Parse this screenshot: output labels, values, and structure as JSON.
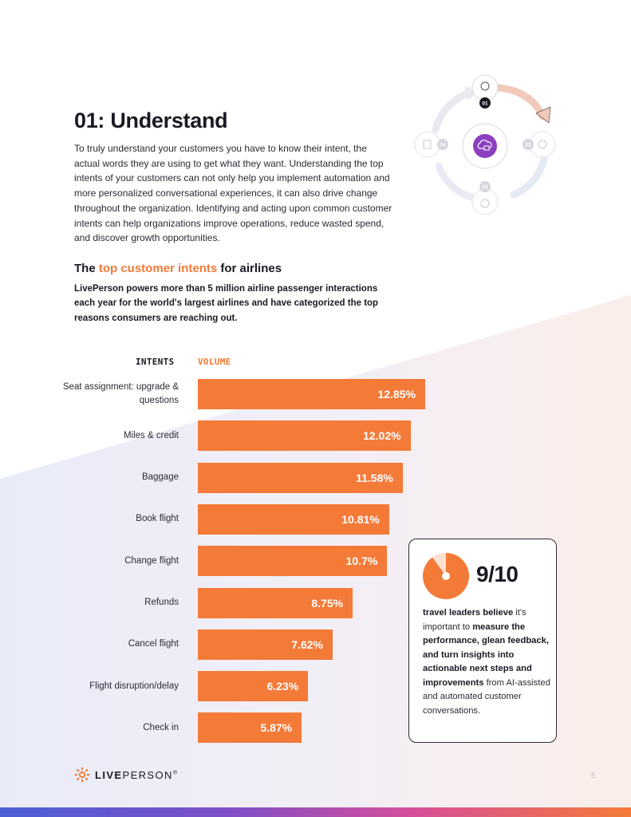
{
  "section": {
    "title": "01: Understand",
    "intro": "To truly understand your customers you have to know their intent, the actual words they are using to get what they want. Understanding the top intents of your customers can not only help you implement automation and more personalized conversational experiences, it can also drive change throughout the organization. Identifying and acting upon common customer intents can help organizations improve operations, reduce wasted spend, and discover growth opportunities."
  },
  "cycle_diagram": {
    "steps": [
      "01",
      "02",
      "03",
      "04"
    ],
    "active_step": "01",
    "icons": [
      "lightbulb-icon",
      "chat-icon",
      "gear-icon",
      "document-icon",
      "cloud-chat-icon"
    ],
    "active_color": "#1a1a24",
    "accent_color": "#8b3fbf"
  },
  "subsection": {
    "heading_prefix": "The ",
    "heading_accent": "top customer intents",
    "heading_suffix": " for airlines",
    "description": "LivePerson powers more than 5 million airline passenger interactions each year for the world's largest airlines and have categorized the top reasons consumers are reaching out."
  },
  "chart_data": {
    "type": "bar",
    "orientation": "horizontal",
    "xlabel": "VOLUME",
    "ylabel": "INTENTS",
    "categories": [
      "Seat assignment: upgrade & questions",
      "Miles & credit",
      "Baggage",
      "Book flight",
      "Change flight",
      "Refunds",
      "Cancel flight",
      "Flight disruption/delay",
      "Check in"
    ],
    "values": [
      12.85,
      12.02,
      11.58,
      10.81,
      10.7,
      8.75,
      7.62,
      6.23,
      5.87
    ],
    "value_labels": [
      "12.85%",
      "12.02%",
      "11.58%",
      "10.81%",
      "10.7%",
      "8.75%",
      "7.62%",
      "6.23%",
      "5.87%"
    ],
    "unit": "%",
    "grid": false,
    "bar_color": "#f47a38"
  },
  "stat_card": {
    "number": "9/10",
    "fraction": 0.9,
    "pie_color": "#f47a38",
    "text_parts": [
      {
        "text": "travel leaders believe",
        "bold": true
      },
      {
        "text": " it's important to ",
        "bold": false
      },
      {
        "text": "measure the performance, glean feedback, and turn insights into actionable next steps and improvements",
        "bold": true
      },
      {
        "text": " from AI-assisted and automated customer conversations.",
        "bold": false
      }
    ]
  },
  "footer": {
    "logo_bold": "LIVE",
    "logo_light": "PERSON",
    "logo_mark": "®",
    "page_number": "5",
    "logo_icon": "liveperson-sun-icon"
  }
}
